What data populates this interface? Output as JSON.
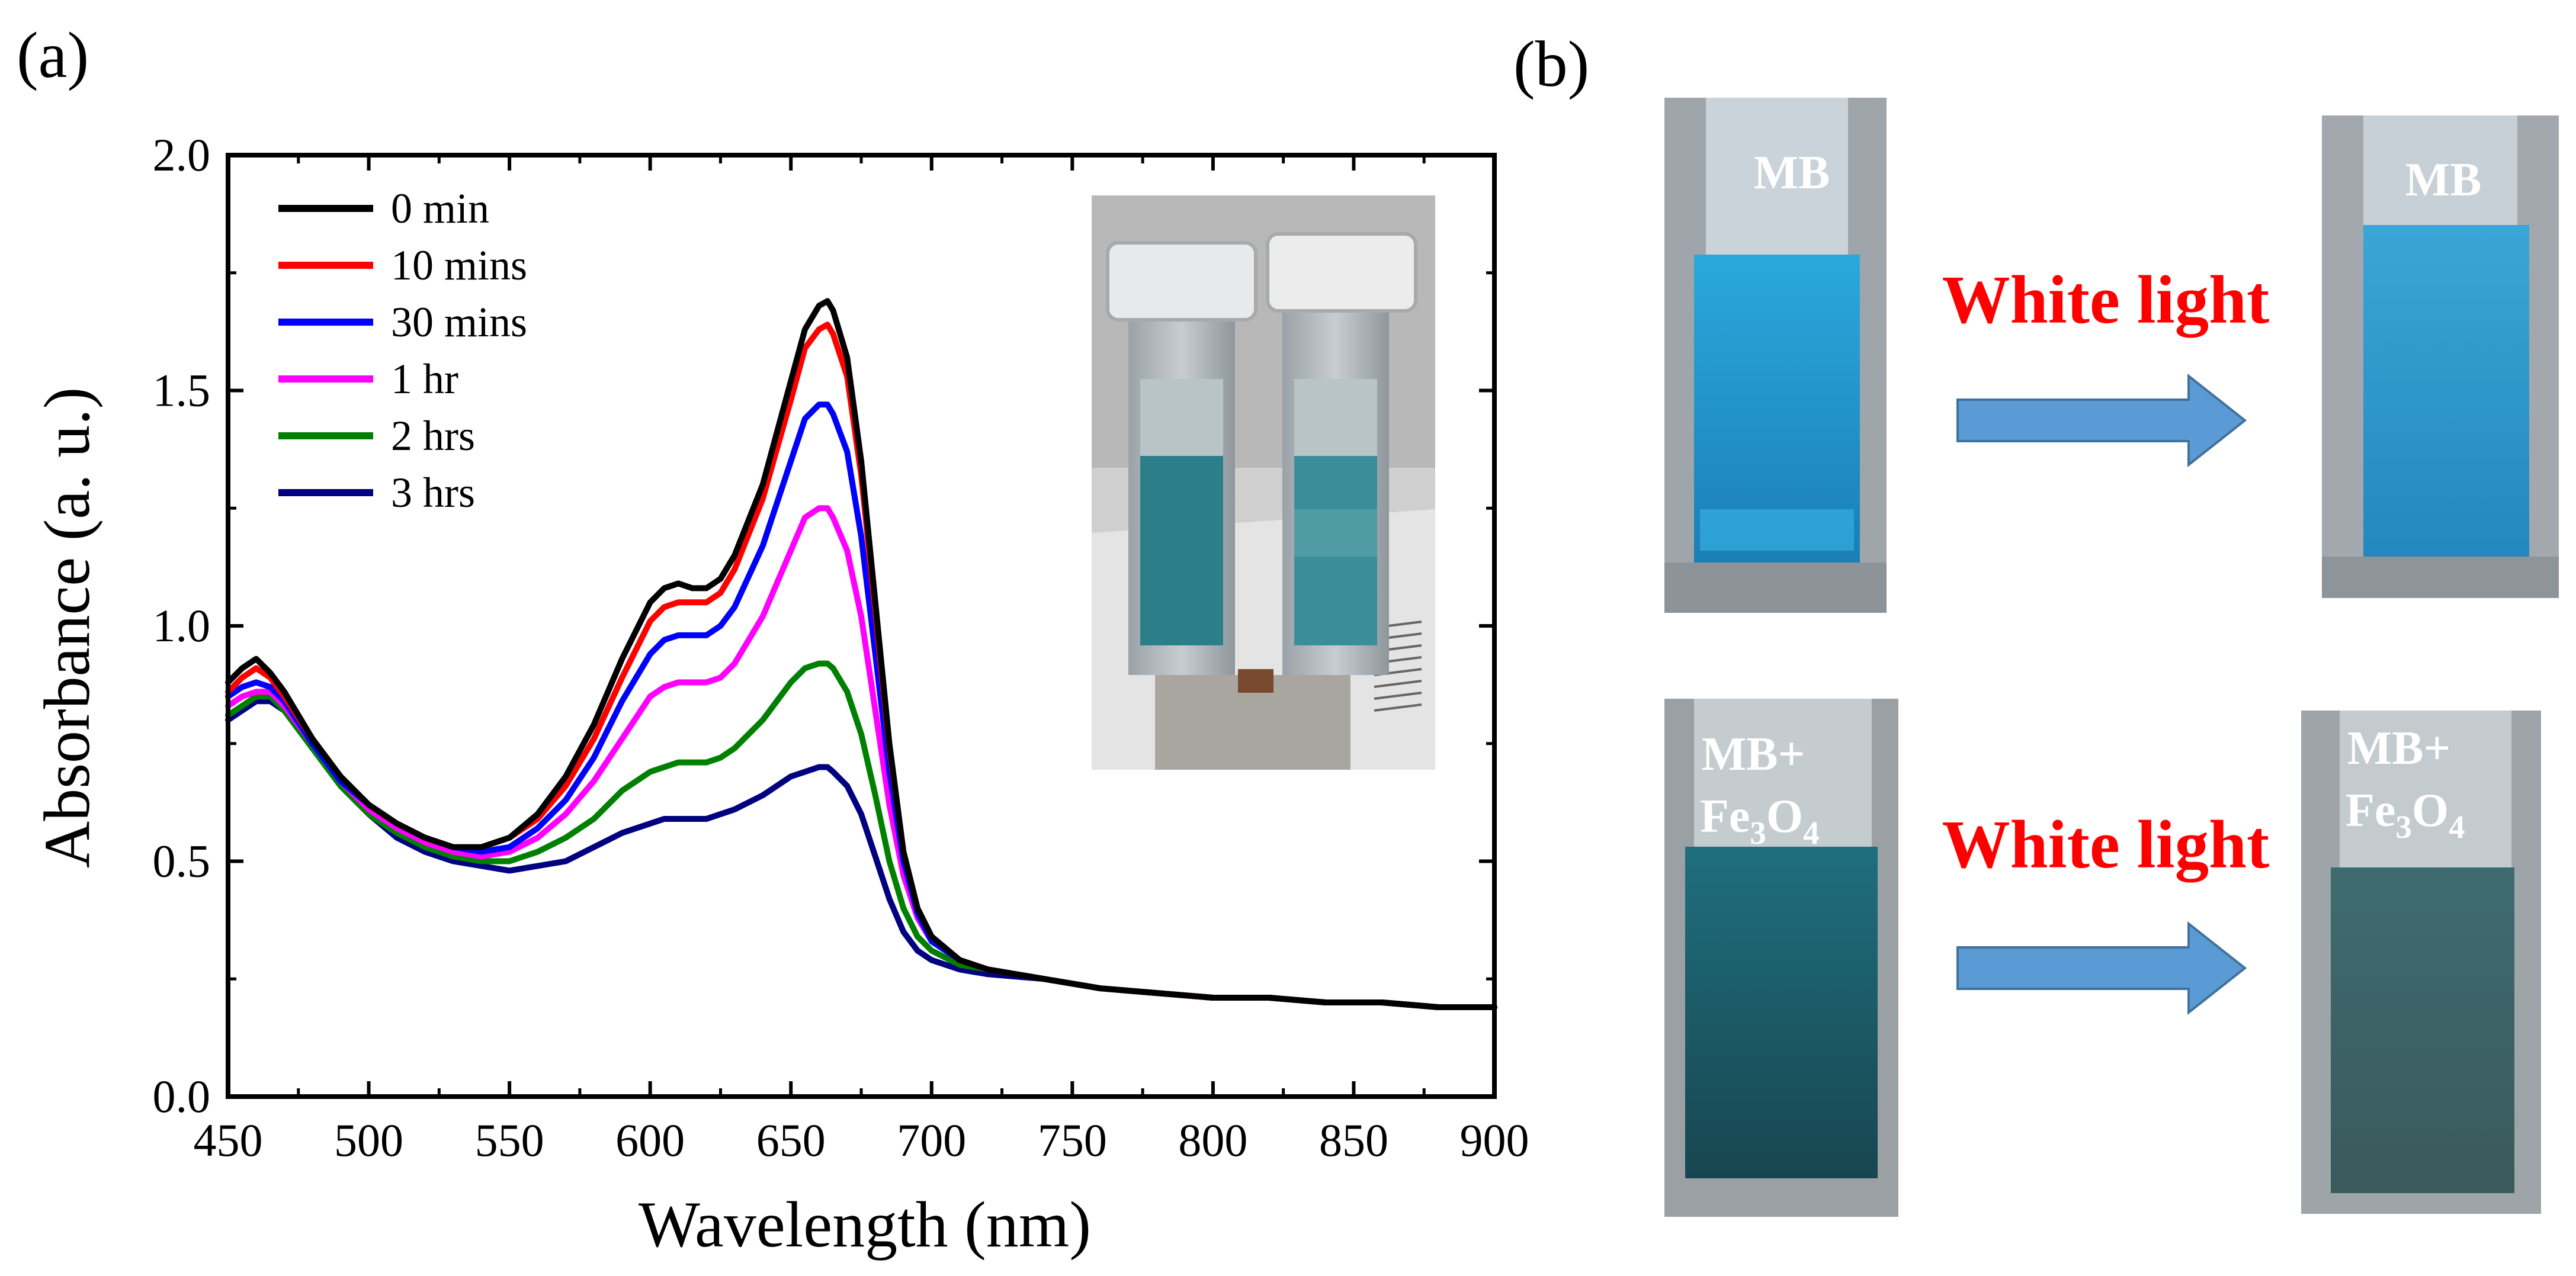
{
  "panel_a": {
    "label": "(a)"
  },
  "panel_b": {
    "label": "(b)",
    "top_before_label": "MB",
    "top_after_label": "MB",
    "top_arrow_label": "White light",
    "bottom_before_label_line1": "MB+",
    "bottom_before_label_line2": "Fe",
    "bottom_before_sub1": "3",
    "bottom_before_o": "O",
    "bottom_before_sub2": "4",
    "bottom_after_label_line1": "MB+",
    "bottom_after_label_line2": "Fe",
    "bottom_after_sub1": "3",
    "bottom_after_o": "O",
    "bottom_after_sub2": "4",
    "bottom_arrow_label": "White light"
  },
  "colors": {
    "title_red": "#ff0000",
    "arrow_blue": "#5b9bd5",
    "mb_blue": "#1f9ad0",
    "mbfe_teal": "#1e5f6c"
  },
  "chart_data": {
    "type": "line",
    "title": "",
    "xlabel": "Wavelength (nm)",
    "ylabel": "Absorbance (a. u.)",
    "xlim": [
      450,
      900
    ],
    "ylim": [
      0.0,
      2.0
    ],
    "xticks": [
      450,
      500,
      550,
      600,
      650,
      700,
      750,
      800,
      850,
      900
    ],
    "yticks": [
      0.0,
      0.5,
      1.0,
      1.5,
      2.0
    ],
    "xtick_labels": [
      "450",
      "500",
      "550",
      "600",
      "650",
      "700",
      "750",
      "800",
      "850",
      "900"
    ],
    "ytick_labels": [
      "0.0",
      "0.5",
      "1.0",
      "1.5",
      "2.0"
    ],
    "legend_position": "top-left",
    "series": [
      {
        "name": "0 min",
        "color": "#000000",
        "x": [
          450,
          455,
          460,
          465,
          470,
          480,
          490,
          500,
          510,
          520,
          530,
          540,
          550,
          560,
          570,
          580,
          590,
          600,
          605,
          610,
          615,
          620,
          625,
          630,
          640,
          650,
          655,
          660,
          663,
          665,
          670,
          675,
          680,
          685,
          690,
          695,
          700,
          710,
          720,
          740,
          760,
          780,
          800,
          820,
          840,
          860,
          880,
          900
        ],
        "y": [
          0.88,
          0.91,
          0.93,
          0.9,
          0.86,
          0.76,
          0.68,
          0.62,
          0.58,
          0.55,
          0.53,
          0.53,
          0.55,
          0.6,
          0.68,
          0.79,
          0.93,
          1.05,
          1.08,
          1.09,
          1.08,
          1.08,
          1.1,
          1.15,
          1.3,
          1.52,
          1.63,
          1.68,
          1.69,
          1.67,
          1.57,
          1.35,
          1.05,
          0.75,
          0.52,
          0.4,
          0.34,
          0.29,
          0.27,
          0.25,
          0.23,
          0.22,
          0.21,
          0.21,
          0.2,
          0.2,
          0.19,
          0.19
        ]
      },
      {
        "name": "10 mins",
        "color": "#ff0000",
        "x": [
          450,
          455,
          460,
          465,
          470,
          480,
          490,
          500,
          510,
          520,
          530,
          540,
          550,
          560,
          570,
          580,
          590,
          600,
          605,
          610,
          615,
          620,
          625,
          630,
          640,
          650,
          655,
          660,
          663,
          665,
          670,
          675,
          680,
          685,
          690,
          695,
          700,
          710,
          720,
          740,
          760,
          780,
          800,
          820,
          840,
          860,
          880,
          900
        ],
        "y": [
          0.86,
          0.89,
          0.91,
          0.89,
          0.85,
          0.76,
          0.68,
          0.62,
          0.58,
          0.55,
          0.53,
          0.53,
          0.55,
          0.59,
          0.66,
          0.76,
          0.89,
          1.01,
          1.04,
          1.05,
          1.05,
          1.05,
          1.07,
          1.12,
          1.27,
          1.48,
          1.59,
          1.63,
          1.64,
          1.62,
          1.53,
          1.32,
          1.03,
          0.74,
          0.52,
          0.4,
          0.34,
          0.29,
          0.27,
          0.25,
          0.23,
          0.22,
          0.21,
          0.21,
          0.2,
          0.2,
          0.19,
          0.19
        ]
      },
      {
        "name": "30 mins",
        "color": "#0000ff",
        "x": [
          450,
          455,
          460,
          465,
          470,
          480,
          490,
          500,
          510,
          520,
          530,
          540,
          550,
          560,
          570,
          580,
          590,
          600,
          605,
          610,
          615,
          620,
          625,
          630,
          640,
          650,
          655,
          660,
          663,
          665,
          670,
          675,
          680,
          685,
          690,
          695,
          700,
          710,
          720,
          740,
          760,
          780,
          800,
          820,
          840,
          860,
          880,
          900
        ],
        "y": [
          0.85,
          0.87,
          0.88,
          0.87,
          0.84,
          0.75,
          0.67,
          0.62,
          0.58,
          0.55,
          0.53,
          0.52,
          0.53,
          0.57,
          0.63,
          0.72,
          0.84,
          0.94,
          0.97,
          0.98,
          0.98,
          0.98,
          1.0,
          1.04,
          1.17,
          1.35,
          1.44,
          1.47,
          1.47,
          1.45,
          1.37,
          1.19,
          0.94,
          0.69,
          0.5,
          0.39,
          0.33,
          0.29,
          0.27,
          0.25,
          0.23,
          0.22,
          0.21,
          0.21,
          0.2,
          0.2,
          0.19,
          0.19
        ]
      },
      {
        "name": "1 hr",
        "color": "#ff00ff",
        "x": [
          450,
          455,
          460,
          465,
          470,
          480,
          490,
          500,
          510,
          520,
          530,
          540,
          550,
          560,
          570,
          580,
          590,
          600,
          605,
          610,
          615,
          620,
          625,
          630,
          640,
          650,
          655,
          660,
          663,
          665,
          670,
          675,
          680,
          685,
          690,
          695,
          700,
          710,
          720,
          740,
          760,
          780,
          800,
          820,
          840,
          860,
          880,
          900
        ],
        "y": [
          0.83,
          0.85,
          0.86,
          0.86,
          0.83,
          0.75,
          0.67,
          0.61,
          0.57,
          0.54,
          0.52,
          0.51,
          0.52,
          0.55,
          0.6,
          0.67,
          0.76,
          0.85,
          0.87,
          0.88,
          0.88,
          0.88,
          0.89,
          0.92,
          1.02,
          1.16,
          1.23,
          1.25,
          1.25,
          1.23,
          1.16,
          1.02,
          0.82,
          0.62,
          0.47,
          0.38,
          0.33,
          0.29,
          0.27,
          0.25,
          0.23,
          0.22,
          0.21,
          0.21,
          0.2,
          0.2,
          0.19,
          0.19
        ]
      },
      {
        "name": "2 hrs",
        "color": "#008000",
        "x": [
          450,
          455,
          460,
          465,
          470,
          480,
          490,
          500,
          510,
          520,
          530,
          540,
          550,
          560,
          570,
          580,
          590,
          600,
          605,
          610,
          615,
          620,
          625,
          630,
          640,
          650,
          655,
          660,
          663,
          665,
          670,
          675,
          680,
          685,
          690,
          695,
          700,
          710,
          720,
          740,
          760,
          780,
          800,
          820,
          840,
          860,
          880,
          900
        ],
        "y": [
          0.81,
          0.83,
          0.85,
          0.85,
          0.82,
          0.74,
          0.66,
          0.6,
          0.56,
          0.53,
          0.51,
          0.5,
          0.5,
          0.52,
          0.55,
          0.59,
          0.65,
          0.69,
          0.7,
          0.71,
          0.71,
          0.71,
          0.72,
          0.74,
          0.8,
          0.88,
          0.91,
          0.92,
          0.92,
          0.91,
          0.86,
          0.77,
          0.64,
          0.5,
          0.4,
          0.34,
          0.31,
          0.28,
          0.27,
          0.25,
          0.23,
          0.22,
          0.21,
          0.21,
          0.2,
          0.2,
          0.19,
          0.19
        ]
      },
      {
        "name": "3 hrs",
        "color": "#000080",
        "x": [
          450,
          455,
          460,
          465,
          470,
          480,
          490,
          500,
          510,
          520,
          530,
          540,
          550,
          560,
          570,
          580,
          590,
          600,
          605,
          610,
          615,
          620,
          625,
          630,
          640,
          650,
          655,
          660,
          663,
          665,
          670,
          675,
          680,
          685,
          690,
          695,
          700,
          710,
          720,
          740,
          760,
          780,
          800,
          820,
          840,
          860,
          880,
          900
        ],
        "y": [
          0.8,
          0.82,
          0.84,
          0.84,
          0.82,
          0.74,
          0.66,
          0.6,
          0.55,
          0.52,
          0.5,
          0.49,
          0.48,
          0.49,
          0.5,
          0.53,
          0.56,
          0.58,
          0.59,
          0.59,
          0.59,
          0.59,
          0.6,
          0.61,
          0.64,
          0.68,
          0.69,
          0.7,
          0.7,
          0.69,
          0.66,
          0.6,
          0.51,
          0.42,
          0.35,
          0.31,
          0.29,
          0.27,
          0.26,
          0.25,
          0.23,
          0.22,
          0.21,
          0.21,
          0.2,
          0.2,
          0.19,
          0.19
        ]
      }
    ]
  }
}
